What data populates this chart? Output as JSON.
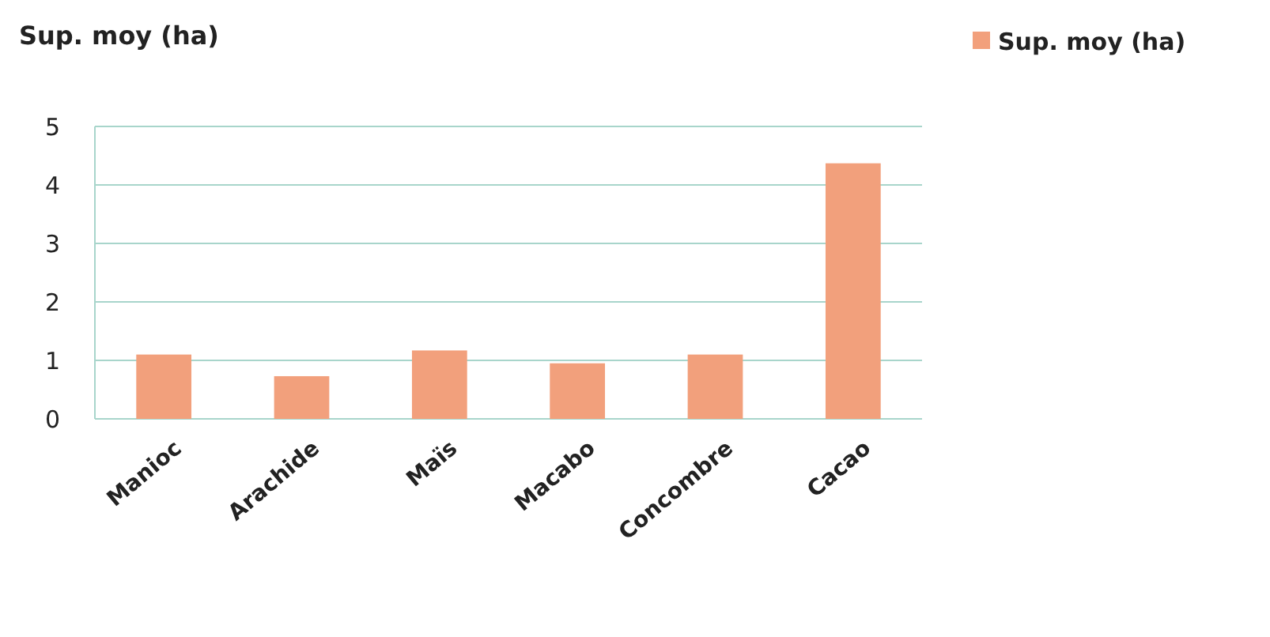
{
  "chart_data": {
    "type": "bar",
    "title": "Sup. moy (ha)",
    "categories": [
      "Manioc",
      "Arachide",
      "Maïs",
      "Macabo",
      "Concombre",
      "Cacao"
    ],
    "series": [
      {
        "name": "Sup. moy (ha)",
        "color": "#f2a07c",
        "values": [
          1.1,
          0.73,
          1.17,
          0.95,
          1.1,
          4.37
        ]
      }
    ],
    "ylim": [
      0,
      5
    ],
    "yticks": [
      0,
      1,
      2,
      3,
      4,
      5
    ],
    "grid": "y",
    "legend": "top right"
  }
}
